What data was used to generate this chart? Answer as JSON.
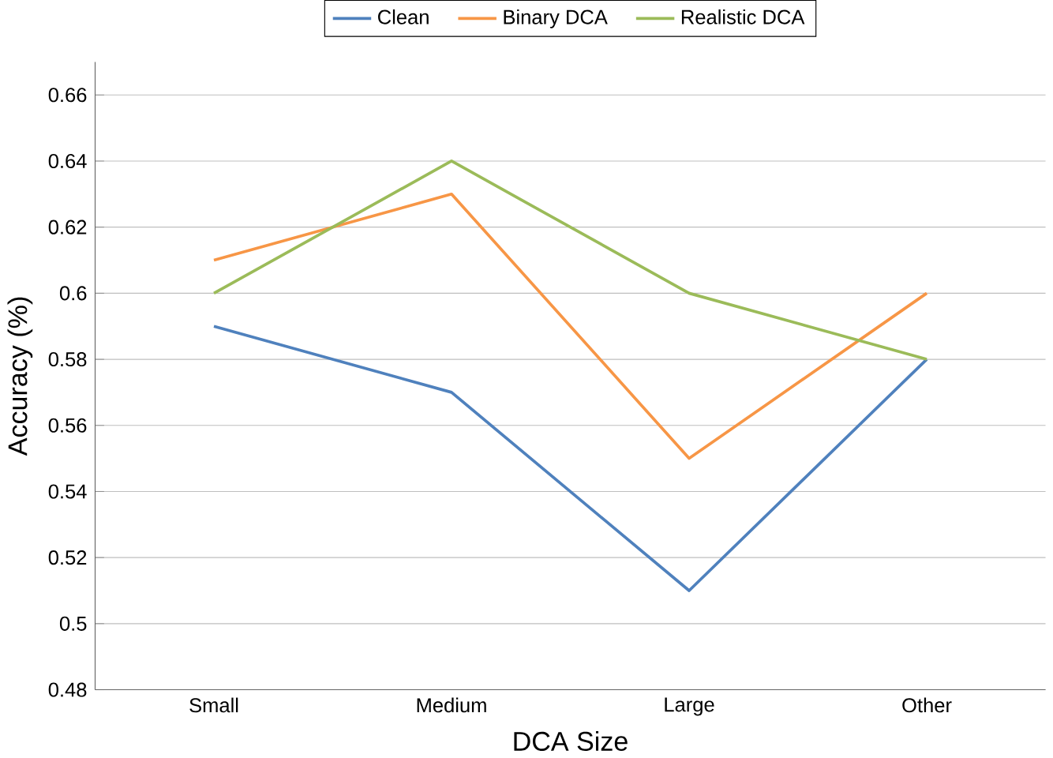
{
  "chart_data": {
    "type": "line",
    "xlabel": "DCA Size",
    "ylabel": "Accuracy (%)",
    "categories": [
      "Small",
      "Medium",
      "Large",
      "Other"
    ],
    "series": [
      {
        "name": "Clean",
        "color": "#4f81bd",
        "values": [
          0.59,
          0.57,
          0.51,
          0.58
        ]
      },
      {
        "name": "Binary DCA",
        "color": "#f79646",
        "values": [
          0.61,
          0.63,
          0.55,
          0.6
        ]
      },
      {
        "name": "Realistic DCA",
        "color": "#9bbb59",
        "values": [
          0.6,
          0.64,
          0.6,
          0.58
        ]
      }
    ],
    "ylim": [
      0.48,
      0.67
    ],
    "yticks": [
      0.48,
      0.5,
      0.52,
      0.54,
      0.56,
      0.58,
      0.6,
      0.62,
      0.64,
      0.66
    ],
    "grid": "y",
    "legend": "top",
    "marker": "none",
    "line_style": "solid"
  }
}
